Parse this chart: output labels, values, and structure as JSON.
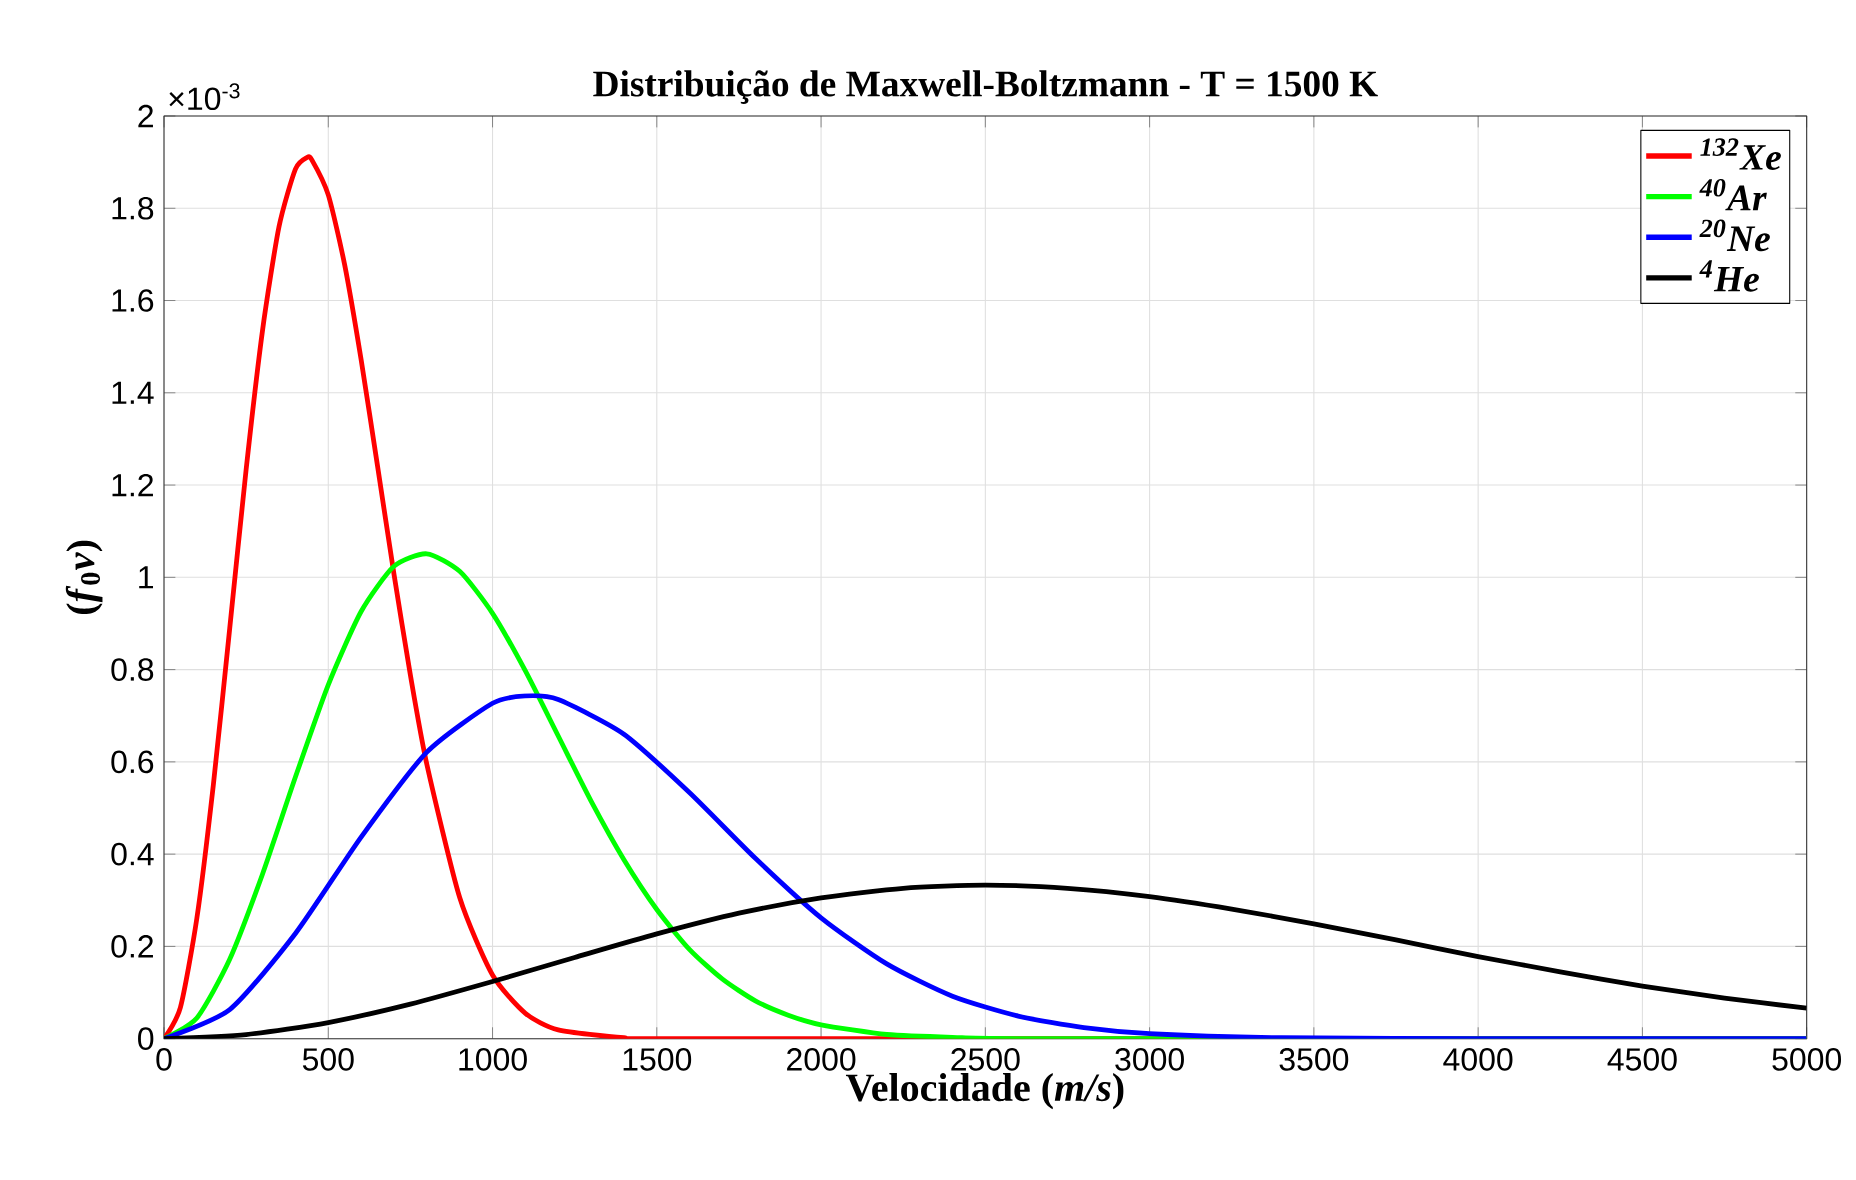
{
  "chart_data": {
    "type": "line",
    "title": "Distribuição de Maxwell-Boltzmann - T = 1500 K",
    "xlabel": "Velocidade (*m/s*)",
    "ylabel": "(*f*$_{0}$*v*)",
    "annotations": [
      "×10$^{-3}$"
    ],
    "xlim": [
      0,
      5000
    ],
    "xticks": [
      0,
      500,
      1000,
      1500,
      2000,
      2500,
      3000,
      3500,
      4000,
      4500,
      5000
    ],
    "ylim": [
      0,
      2
    ],
    "yticks": [
      0,
      0.2,
      0.4,
      0.6,
      0.8,
      1,
      1.2,
      1.4,
      1.6,
      1.8,
      2
    ],
    "grid": true,
    "legend": "top right",
    "marker": "none",
    "line_style": "solid",
    "series": [
      {
        "name": "$^{132}$Xe",
        "color": "#ff0000",
        "x": [
          0,
          50,
          100,
          150,
          200,
          250,
          300,
          350,
          400,
          435,
          450,
          500,
          550,
          600,
          650,
          700,
          750,
          800,
          900,
          1000,
          1100,
          1200,
          1400,
          1600,
          5000
        ],
        "values": [
          0,
          0.068,
          0.261,
          0.549,
          0.889,
          1.234,
          1.536,
          1.76,
          1.885,
          1.91,
          1.905,
          1.829,
          1.677,
          1.472,
          1.241,
          1.007,
          0.788,
          0.595,
          0.306,
          0.138,
          0.055,
          0.019,
          0.002,
          0,
          0
        ]
      },
      {
        "name": "$^{40}$Ar",
        "color": "#00ff00",
        "x": [
          0,
          100,
          200,
          300,
          400,
          500,
          600,
          700,
          800,
          900,
          1000,
          1100,
          1200,
          1300,
          1400,
          1500,
          1600,
          1700,
          1800,
          1900,
          2000,
          2200,
          2400,
          2700,
          5000
        ],
        "values": [
          0,
          0.045,
          0.172,
          0.357,
          0.567,
          0.767,
          0.926,
          1.024,
          1.051,
          1.013,
          0.922,
          0.797,
          0.656,
          0.515,
          0.388,
          0.28,
          0.193,
          0.129,
          0.082,
          0.051,
          0.03,
          0.009,
          0.003,
          0,
          0
        ]
      },
      {
        "name": "$^{20}$Ne",
        "color": "#0000ff",
        "x": [
          0,
          200,
          400,
          600,
          800,
          1000,
          1100,
          1200,
          1400,
          1600,
          1800,
          2000,
          2200,
          2400,
          2600,
          2800,
          3000,
          3400,
          4000,
          5000
        ],
        "values": [
          0,
          0.063,
          0.228,
          0.437,
          0.621,
          0.727,
          0.743,
          0.735,
          0.66,
          0.533,
          0.391,
          0.262,
          0.162,
          0.092,
          0.049,
          0.024,
          0.011,
          0.002,
          0,
          0
        ]
      },
      {
        "name": "$^{4}$He",
        "color": "#000000",
        "x": [
          0,
          250,
          500,
          750,
          1000,
          1250,
          1500,
          1750,
          2000,
          2250,
          2500,
          2750,
          3000,
          3250,
          3500,
          3750,
          4000,
          4250,
          4500,
          4750,
          5000
        ],
        "values": [
          0,
          0.009,
          0.035,
          0.075,
          0.124,
          0.176,
          0.227,
          0.272,
          0.305,
          0.326,
          0.333,
          0.326,
          0.308,
          0.281,
          0.249,
          0.214,
          0.178,
          0.145,
          0.114,
          0.088,
          0.066
        ]
      }
    ]
  }
}
